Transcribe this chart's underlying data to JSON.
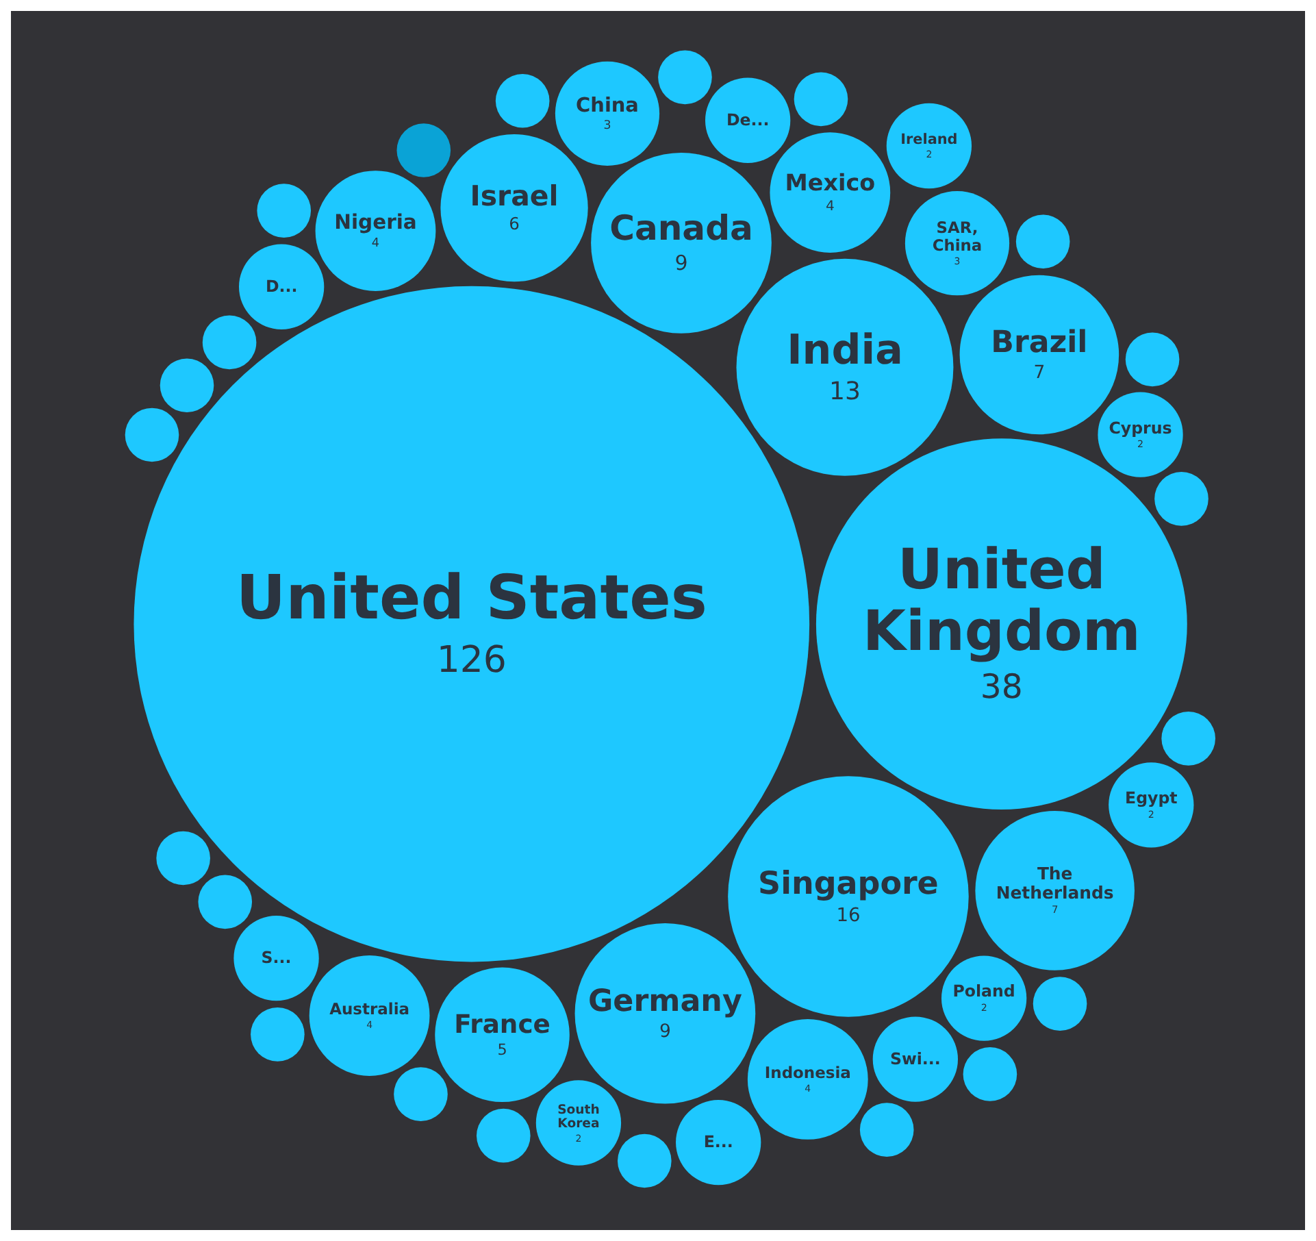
{
  "chart_data": {
    "type": "other",
    "categories": [
      "United States",
      "United Kingdom",
      "Singapore",
      "India",
      "Canada",
      "Germany",
      "Brazil",
      "The Netherlands",
      "Israel",
      "France",
      "Mexico",
      "Indonesia",
      "Nigeria",
      "Australia",
      "SAR, China",
      "China",
      "Ireland",
      "South Korea",
      "Poland",
      "Cyprus",
      "Egypt",
      "Swi...",
      "De...",
      "D...",
      "S...",
      "E...",
      null,
      null,
      null,
      null,
      null,
      null,
      null,
      null,
      null,
      null,
      null,
      null,
      null,
      null,
      null,
      null,
      null,
      null,
      null,
      null,
      null
    ],
    "values": [
      126,
      38,
      16,
      13,
      9,
      9,
      7,
      7,
      6,
      5,
      4,
      4,
      4,
      4,
      3,
      3,
      2,
      2,
      2,
      2,
      2,
      null,
      null,
      null,
      null,
      null,
      null,
      null,
      null,
      null,
      null,
      null,
      null,
      null,
      null,
      null,
      null,
      null,
      null,
      null,
      null,
      null,
      null,
      null,
      null,
      null,
      null
    ],
    "data_labels": true,
    "colors": [
      "#1ec8ff",
      "#1ec8ff",
      "#1ec8ff",
      "#1ec8ff",
      "#1ec8ff",
      "#1ec8ff",
      "#1ec8ff",
      "#1ec8ff",
      "#1ec8ff",
      "#1ec8ff",
      "#1ec8ff",
      "#1ec8ff",
      "#1ec8ff",
      "#1ec8ff",
      "#1ec8ff",
      "#1ec8ff",
      "#1ec8ff",
      "#1ec8ff",
      "#1ec8ff",
      "#1ec8ff",
      "#1ec8ff",
      "#1ec8ff",
      "#1ec8ff",
      "#1ec8ff",
      "#1ec8ff",
      "#1ec8ff",
      "#0aa3d6",
      "#1ec8ff",
      "#1ec8ff",
      "#1ec8ff",
      "#1ec8ff",
      "#1ec8ff",
      "#1ec8ff",
      "#1ec8ff",
      "#1ec8ff",
      "#1ec8ff",
      "#1ec8ff",
      "#1ec8ff",
      "#1ec8ff",
      "#1ec8ff",
      "#1ec8ff",
      "#1ec8ff",
      "#1ec8ff",
      "#1ec8ff",
      "#1ec8ff",
      "#1ec8ff",
      "#1ec8ff"
    ]
  }
}
